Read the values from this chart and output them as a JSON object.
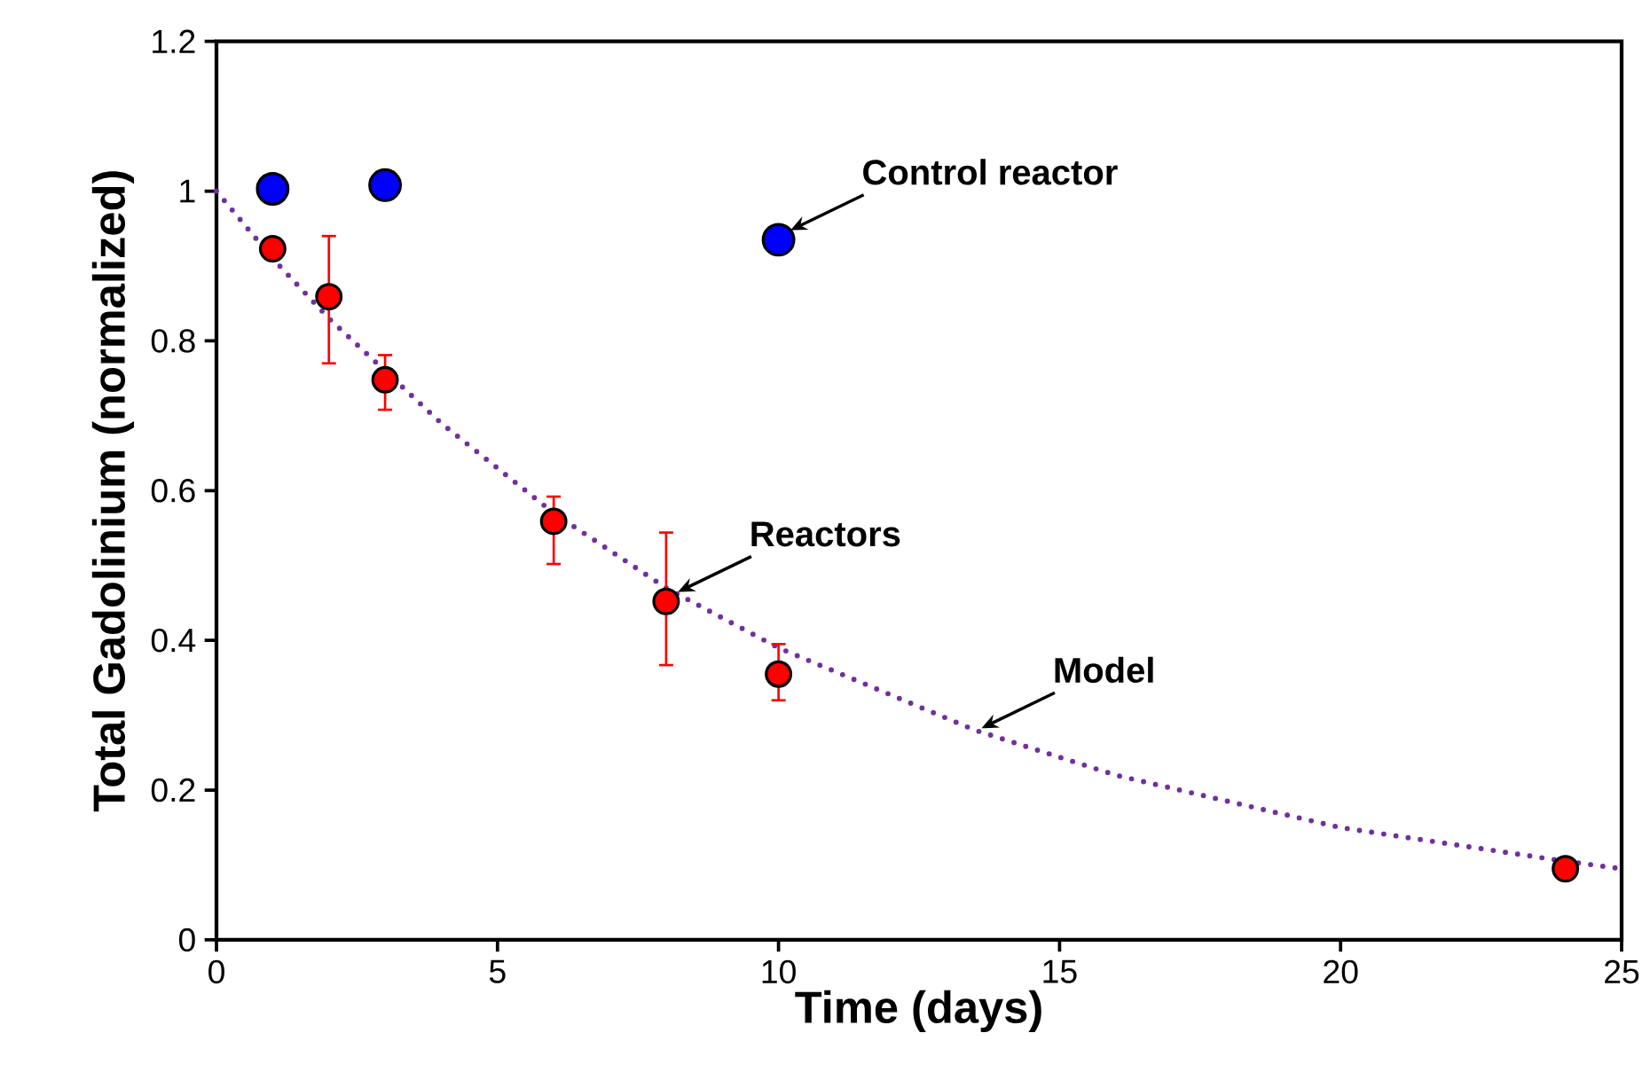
{
  "chart_data": {
    "type": "scatter",
    "xlabel": "Time (days)",
    "ylabel": "Total Gadolinium (normalized)",
    "xlim": [
      0,
      25
    ],
    "ylim": [
      0,
      1.2
    ],
    "xticks": [
      0,
      5,
      10,
      15,
      20,
      25
    ],
    "yticks": [
      0,
      0.2,
      0.4,
      0.6,
      0.8,
      1,
      1.2
    ],
    "series": [
      {
        "type": "line",
        "color": "#7030a0",
        "line_style": "dotted",
        "marker": "none",
        "x": [
          0,
          1,
          2,
          3,
          4,
          6,
          8,
          10,
          13.5,
          16,
          20,
          24,
          25
        ],
        "values": [
          1.0,
          0.91,
          0.83,
          0.76,
          0.69,
          0.57,
          0.47,
          0.39,
          0.28,
          0.22,
          0.15,
          0.105,
          0.095
        ]
      },
      {
        "color": "#ff0000",
        "marker": "circle",
        "x": [
          1,
          2,
          3,
          6,
          8,
          10,
          24
        ],
        "values": [
          0.923,
          0.859,
          0.748,
          0.559,
          0.452,
          0.355,
          0.095
        ],
        "errors": [
          null,
          [
            0.77,
            0.94
          ],
          [
            0.708,
            0.781
          ],
          [
            0.502,
            0.592
          ],
          [
            0.367,
            0.544
          ],
          [
            0.32,
            0.395
          ],
          null
        ]
      },
      {
        "color": "#0000ff",
        "marker": "circle",
        "x": [
          1,
          3,
          10
        ],
        "values": [
          1.003,
          1.008,
          0.935
        ]
      }
    ],
    "annotations": [
      {
        "text": "Control reactor",
        "x": 10,
        "y": 0.935
      },
      {
        "text": "Reactors",
        "x": 8,
        "y": 0.452
      },
      {
        "text": "Model",
        "x": 13.4,
        "y": 0.27
      }
    ]
  }
}
